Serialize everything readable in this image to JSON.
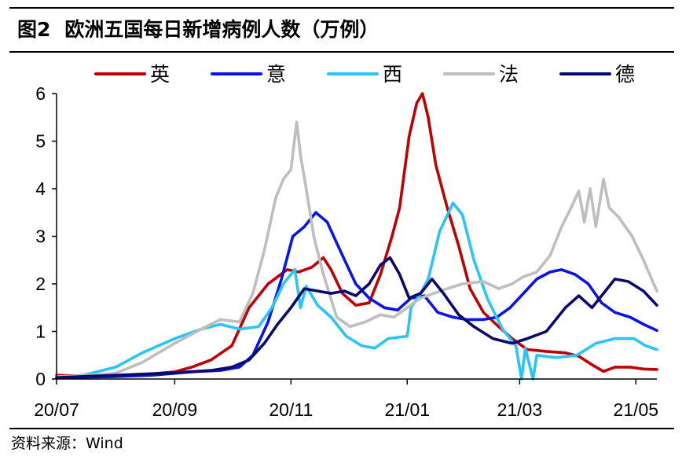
{
  "header": {
    "figure_label": "图2",
    "title": "欧洲五国每日新增病例人数（万例）"
  },
  "source": "资料来源：Wind",
  "chart_data": {
    "type": "line",
    "title": "欧洲五国每日新增病例人数（万例）",
    "ylim": [
      0,
      6
    ],
    "y_ticks": [
      "0",
      "1",
      "2",
      "3",
      "4",
      "5",
      "6"
    ],
    "x_ticks": [
      "20/07",
      "20/09",
      "20/11",
      "21/01",
      "21/03",
      "21/05"
    ],
    "x_range": [
      "2020-07-01",
      "2021-05-12"
    ],
    "grid": false,
    "legend_position": "top",
    "series": [
      {
        "name": "英",
        "color": "#C00000",
        "points": [
          [
            "2020-07-01",
            0.08
          ],
          [
            "2020-07-15",
            0.06
          ],
          [
            "2020-08-01",
            0.07
          ],
          [
            "2020-08-15",
            0.09
          ],
          [
            "2020-09-01",
            0.15
          ],
          [
            "2020-09-10",
            0.25
          ],
          [
            "2020-09-20",
            0.4
          ],
          [
            "2020-10-01",
            0.7
          ],
          [
            "2020-10-10",
            1.5
          ],
          [
            "2020-10-20",
            2.0
          ],
          [
            "2020-10-30",
            2.3
          ],
          [
            "2020-11-05",
            2.25
          ],
          [
            "2020-11-12",
            2.35
          ],
          [
            "2020-11-18",
            2.55
          ],
          [
            "2020-11-22",
            2.3
          ],
          [
            "2020-11-28",
            1.8
          ],
          [
            "2020-12-05",
            1.55
          ],
          [
            "2020-12-12",
            1.6
          ],
          [
            "2020-12-18",
            2.2
          ],
          [
            "2020-12-24",
            3.0
          ],
          [
            "2020-12-28",
            3.6
          ],
          [
            "2021-01-02",
            5.1
          ],
          [
            "2021-01-06",
            5.8
          ],
          [
            "2021-01-09",
            6.0
          ],
          [
            "2021-01-12",
            5.5
          ],
          [
            "2021-01-16",
            4.5
          ],
          [
            "2021-01-22",
            3.6
          ],
          [
            "2021-01-28",
            2.8
          ],
          [
            "2021-02-03",
            1.9
          ],
          [
            "2021-02-10",
            1.4
          ],
          [
            "2021-02-18",
            1.1
          ],
          [
            "2021-02-25",
            0.85
          ],
          [
            "2021-03-05",
            0.62
          ],
          [
            "2021-03-15",
            0.58
          ],
          [
            "2021-03-25",
            0.55
          ],
          [
            "2021-04-01",
            0.48
          ],
          [
            "2021-04-08",
            0.3
          ],
          [
            "2021-04-14",
            0.16
          ],
          [
            "2021-04-20",
            0.25
          ],
          [
            "2021-04-28",
            0.25
          ],
          [
            "2021-05-05",
            0.21
          ],
          [
            "2021-05-12",
            0.2
          ]
        ]
      },
      {
        "name": "意",
        "color": "#0A14E6",
        "points": [
          [
            "2020-07-01",
            0.03
          ],
          [
            "2020-08-01",
            0.05
          ],
          [
            "2020-08-20",
            0.08
          ],
          [
            "2020-09-10",
            0.15
          ],
          [
            "2020-09-25",
            0.18
          ],
          [
            "2020-10-05",
            0.25
          ],
          [
            "2020-10-12",
            0.5
          ],
          [
            "2020-10-20",
            1.2
          ],
          [
            "2020-10-27",
            2.1
          ],
          [
            "2020-11-02",
            3.0
          ],
          [
            "2020-11-08",
            3.2
          ],
          [
            "2020-11-14",
            3.5
          ],
          [
            "2020-11-20",
            3.3
          ],
          [
            "2020-11-28",
            2.6
          ],
          [
            "2020-12-05",
            2.0
          ],
          [
            "2020-12-12",
            1.7
          ],
          [
            "2020-12-20",
            1.5
          ],
          [
            "2020-12-27",
            1.45
          ],
          [
            "2021-01-03",
            1.7
          ],
          [
            "2021-01-10",
            1.75
          ],
          [
            "2021-01-17",
            1.4
          ],
          [
            "2021-01-25",
            1.3
          ],
          [
            "2021-02-01",
            1.25
          ],
          [
            "2021-02-10",
            1.25
          ],
          [
            "2021-02-17",
            1.3
          ],
          [
            "2021-02-24",
            1.5
          ],
          [
            "2021-03-03",
            1.8
          ],
          [
            "2021-03-10",
            2.1
          ],
          [
            "2021-03-17",
            2.25
          ],
          [
            "2021-03-23",
            2.3
          ],
          [
            "2021-03-30",
            2.2
          ],
          [
            "2021-04-06",
            2.0
          ],
          [
            "2021-04-13",
            1.6
          ],
          [
            "2021-04-20",
            1.4
          ],
          [
            "2021-04-28",
            1.3
          ],
          [
            "2021-05-05",
            1.15
          ],
          [
            "2021-05-12",
            1.02
          ]
        ]
      },
      {
        "name": "西",
        "color": "#29C5F6",
        "points": [
          [
            "2020-07-01",
            0.03
          ],
          [
            "2020-07-15",
            0.08
          ],
          [
            "2020-08-01",
            0.25
          ],
          [
            "2020-08-15",
            0.55
          ],
          [
            "2020-09-01",
            0.85
          ],
          [
            "2020-09-15",
            1.05
          ],
          [
            "2020-09-25",
            1.15
          ],
          [
            "2020-10-05",
            1.05
          ],
          [
            "2020-10-15",
            1.1
          ],
          [
            "2020-10-22",
            1.5
          ],
          [
            "2020-10-28",
            2.0
          ],
          [
            "2020-11-03",
            2.3
          ],
          [
            "2020-11-06",
            1.5
          ],
          [
            "2020-11-09",
            1.95
          ],
          [
            "2020-11-15",
            1.55
          ],
          [
            "2020-11-22",
            1.3
          ],
          [
            "2020-11-30",
            0.9
          ],
          [
            "2020-12-08",
            0.7
          ],
          [
            "2020-12-15",
            0.65
          ],
          [
            "2020-12-22",
            0.85
          ],
          [
            "2021-01-01",
            0.9
          ],
          [
            "2021-01-03",
            1.5
          ],
          [
            "2021-01-08",
            1.8
          ],
          [
            "2021-01-12",
            2.1
          ],
          [
            "2021-01-18",
            3.1
          ],
          [
            "2021-01-25",
            3.7
          ],
          [
            "2021-01-30",
            3.45
          ],
          [
            "2021-02-05",
            2.5
          ],
          [
            "2021-02-12",
            1.7
          ],
          [
            "2021-02-20",
            1.05
          ],
          [
            "2021-02-27",
            0.7
          ],
          [
            "2021-03-02",
            0.0
          ],
          [
            "2021-03-04",
            0.65
          ],
          [
            "2021-03-08",
            0.0
          ],
          [
            "2021-03-10",
            0.5
          ],
          [
            "2021-03-20",
            0.45
          ],
          [
            "2021-03-31",
            0.5
          ],
          [
            "2021-04-10",
            0.75
          ],
          [
            "2021-04-20",
            0.85
          ],
          [
            "2021-04-30",
            0.85
          ],
          [
            "2021-05-06",
            0.7
          ],
          [
            "2021-05-12",
            0.62
          ]
        ]
      },
      {
        "name": "法",
        "color": "#BEBEBE",
        "points": [
          [
            "2020-07-01",
            0.05
          ],
          [
            "2020-07-15",
            0.07
          ],
          [
            "2020-08-01",
            0.12
          ],
          [
            "2020-08-15",
            0.35
          ],
          [
            "2020-09-01",
            0.75
          ],
          [
            "2020-09-15",
            1.05
          ],
          [
            "2020-09-25",
            1.25
          ],
          [
            "2020-10-05",
            1.2
          ],
          [
            "2020-10-12",
            1.8
          ],
          [
            "2020-10-18",
            2.7
          ],
          [
            "2020-10-24",
            3.8
          ],
          [
            "2020-10-28",
            4.2
          ],
          [
            "2020-11-01",
            4.4
          ],
          [
            "2020-11-04",
            5.4
          ],
          [
            "2020-11-06",
            4.7
          ],
          [
            "2020-11-09",
            4.0
          ],
          [
            "2020-11-13",
            3.0
          ],
          [
            "2020-11-18",
            2.2
          ],
          [
            "2020-11-25",
            1.3
          ],
          [
            "2020-12-02",
            1.1
          ],
          [
            "2020-12-10",
            1.2
          ],
          [
            "2020-12-18",
            1.35
          ],
          [
            "2020-12-25",
            1.3
          ],
          [
            "2021-01-01",
            1.5
          ],
          [
            "2021-01-08",
            1.7
          ],
          [
            "2021-01-15",
            1.8
          ],
          [
            "2021-01-22",
            1.9
          ],
          [
            "2021-01-30",
            2.0
          ],
          [
            "2021-02-10",
            2.05
          ],
          [
            "2021-02-18",
            1.9
          ],
          [
            "2021-02-25",
            2.0
          ],
          [
            "2021-03-03",
            2.15
          ],
          [
            "2021-03-10",
            2.25
          ],
          [
            "2021-03-17",
            2.6
          ],
          [
            "2021-03-23",
            3.2
          ],
          [
            "2021-03-28",
            3.6
          ],
          [
            "2021-04-01",
            3.95
          ],
          [
            "2021-04-04",
            3.3
          ],
          [
            "2021-04-07",
            4.0
          ],
          [
            "2021-04-10",
            3.2
          ],
          [
            "2021-04-14",
            4.2
          ],
          [
            "2021-04-17",
            3.6
          ],
          [
            "2021-04-22",
            3.4
          ],
          [
            "2021-04-29",
            3.0
          ],
          [
            "2021-05-05",
            2.5
          ],
          [
            "2021-05-12",
            1.85
          ]
        ]
      },
      {
        "name": "德",
        "color": "#0A0A6E",
        "points": [
          [
            "2020-07-01",
            0.03
          ],
          [
            "2020-08-01",
            0.08
          ],
          [
            "2020-09-01",
            0.13
          ],
          [
            "2020-09-20",
            0.18
          ],
          [
            "2020-10-01",
            0.25
          ],
          [
            "2020-10-10",
            0.4
          ],
          [
            "2020-10-18",
            0.75
          ],
          [
            "2020-10-25",
            1.15
          ],
          [
            "2020-11-01",
            1.5
          ],
          [
            "2020-11-08",
            1.9
          ],
          [
            "2020-11-15",
            1.85
          ],
          [
            "2020-11-22",
            1.8
          ],
          [
            "2020-11-29",
            1.85
          ],
          [
            "2020-12-05",
            1.75
          ],
          [
            "2020-12-12",
            2.0
          ],
          [
            "2020-12-18",
            2.4
          ],
          [
            "2020-12-23",
            2.55
          ],
          [
            "2020-12-28",
            2.2
          ],
          [
            "2021-01-02",
            1.7
          ],
          [
            "2021-01-08",
            1.8
          ],
          [
            "2021-01-14",
            2.1
          ],
          [
            "2021-01-20",
            1.8
          ],
          [
            "2021-01-28",
            1.35
          ],
          [
            "2021-02-05",
            1.1
          ],
          [
            "2021-02-15",
            0.85
          ],
          [
            "2021-02-25",
            0.75
          ],
          [
            "2021-03-05",
            0.85
          ],
          [
            "2021-03-15",
            1.0
          ],
          [
            "2021-03-25",
            1.5
          ],
          [
            "2021-04-01",
            1.75
          ],
          [
            "2021-04-08",
            1.5
          ],
          [
            "2021-04-14",
            1.8
          ],
          [
            "2021-04-20",
            2.1
          ],
          [
            "2021-04-27",
            2.05
          ],
          [
            "2021-05-05",
            1.85
          ],
          [
            "2021-05-12",
            1.55
          ]
        ]
      }
    ]
  }
}
